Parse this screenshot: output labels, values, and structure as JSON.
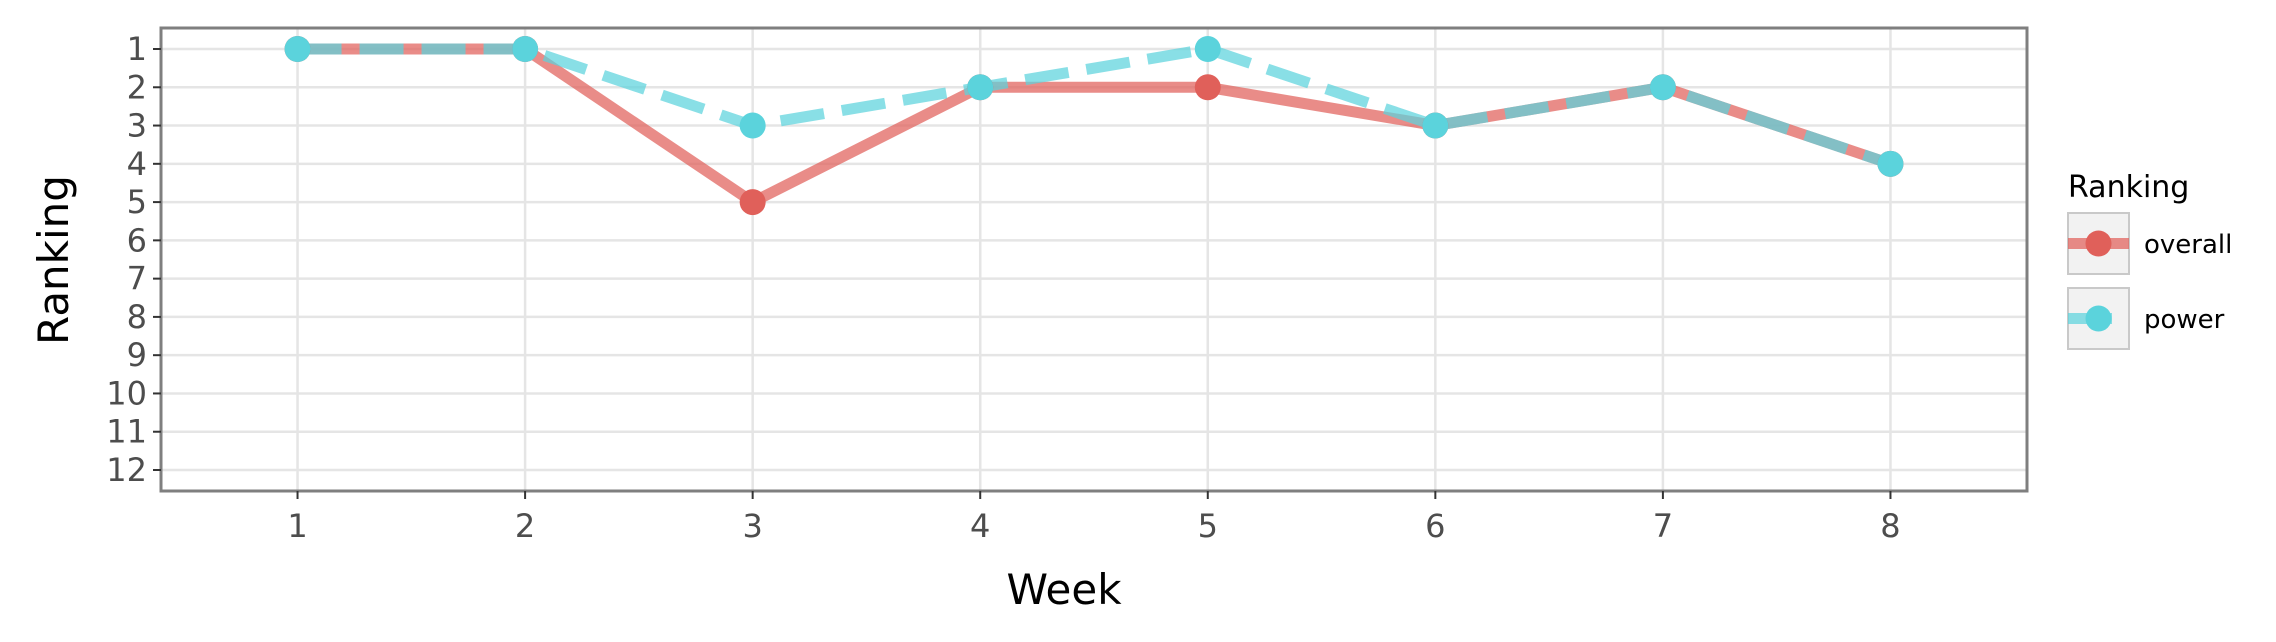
{
  "chart_data": {
    "type": "line",
    "xlabel": "Week",
    "ylabel": "Ranking",
    "x": [
      1,
      2,
      3,
      4,
      5,
      6,
      7,
      8
    ],
    "x_ticks": [
      "1",
      "2",
      "3",
      "4",
      "5",
      "6",
      "7",
      "8"
    ],
    "y_ticks": [
      "1",
      "2",
      "3",
      "4",
      "5",
      "6",
      "7",
      "8",
      "9",
      "10",
      "11",
      "12"
    ],
    "xlim": [
      0.4,
      8.6
    ],
    "ylim": [
      1,
      12
    ],
    "y_reversed": true,
    "grid": true,
    "legend": {
      "title": "Ranking",
      "position": "right"
    },
    "series": [
      {
        "name": "overall",
        "values": [
          1,
          1,
          5,
          2,
          2,
          3,
          2,
          4
        ],
        "color": "#e0605a",
        "line_style": "solid"
      },
      {
        "name": "power",
        "values": [
          1,
          1,
          3,
          2,
          1,
          3,
          2,
          4
        ],
        "color": "#5bd3dc",
        "line_style": "dashed"
      }
    ]
  }
}
